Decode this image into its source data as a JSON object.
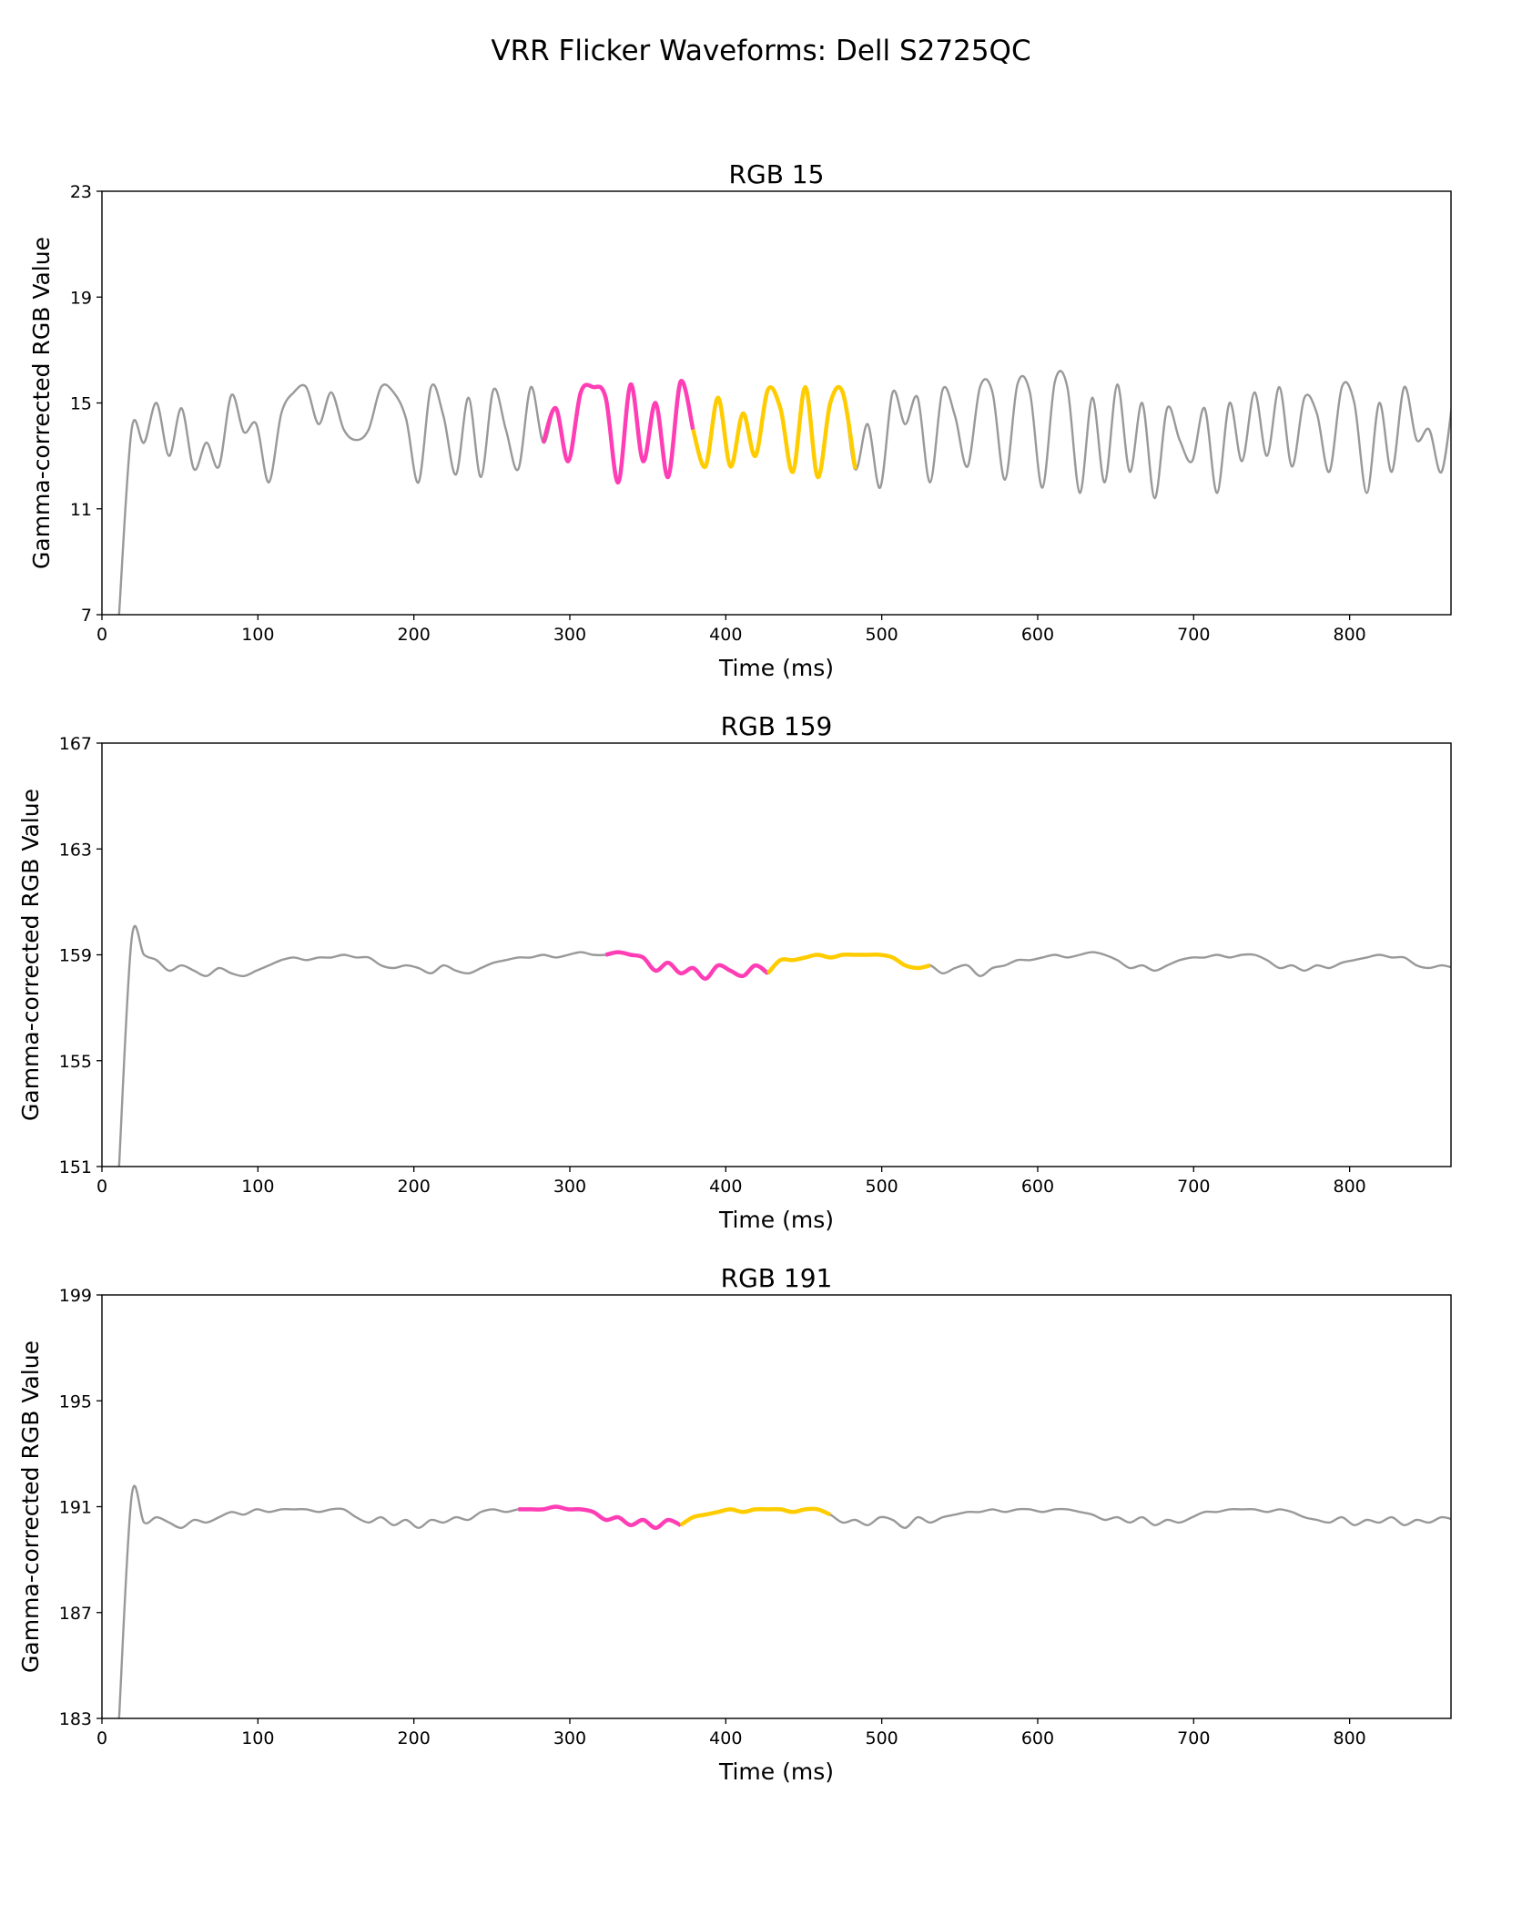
{
  "title": "VRR Flicker Waveforms: Dell S2725QC",
  "colors": {
    "base": "#999999",
    "highlight_a": "#ff3eb5",
    "highlight_b": "#ffcc00"
  },
  "chart_data": [
    {
      "type": "line",
      "title": "RGB 15",
      "xlabel": "Time (ms)",
      "ylabel": "Gamma-corrected RGB Value",
      "xlim": [
        0,
        865
      ],
      "ylim": [
        7,
        23
      ],
      "xticks": [
        0,
        100,
        200,
        300,
        400,
        500,
        600,
        700,
        800
      ],
      "yticks": [
        7,
        11,
        15,
        19,
        23
      ],
      "x_start": 11,
      "x_step": 8,
      "values": [
        7,
        14,
        13.5,
        15,
        13,
        14.8,
        12.5,
        13.5,
        12.6,
        15.3,
        13.9,
        14.2,
        12,
        14.6,
        15.4,
        15.6,
        14.2,
        15.4,
        14,
        13.6,
        14,
        15.6,
        15.4,
        14.4,
        12,
        15.6,
        14.5,
        12.3,
        15.2,
        12.2,
        15.5,
        14,
        12.5,
        15.6,
        13.5,
        14.8,
        12.8,
        15.4,
        15.6,
        15.2,
        12,
        15.7,
        12.8,
        15,
        12.2,
        15.8,
        14,
        12.6,
        15.2,
        12.6,
        14.6,
        13,
        15.5,
        14.8,
        12.4,
        15.6,
        12.2,
        15,
        15.4,
        12.5,
        14.2,
        11.8,
        15.4,
        14.2,
        15.2,
        12,
        15.5,
        14.5,
        12.6,
        15.6,
        15.4,
        12.1,
        15.7,
        15.4,
        11.8,
        15.8,
        15.6,
        11.6,
        15.2,
        12,
        15.7,
        12.4,
        15,
        11.4,
        14.8,
        13.6,
        12.8,
        14.8,
        11.6,
        15,
        12.8,
        15.4,
        13,
        15.6,
        12.6,
        15.2,
        14.6,
        12.4,
        15.6,
        15,
        11.6,
        15,
        12.4,
        15.6,
        13.6,
        14,
        12.4,
        15.6
      ],
      "highlights": [
        {
          "color": "highlight_a",
          "range": [
            281,
            382
          ]
        },
        {
          "color": "highlight_b",
          "range": [
            382,
            480
          ]
        }
      ]
    },
    {
      "type": "line",
      "title": "RGB 159",
      "xlabel": "Time (ms)",
      "ylabel": "Gamma-corrected RGB Value",
      "xlim": [
        0,
        865
      ],
      "ylim": [
        151,
        167
      ],
      "xticks": [
        0,
        100,
        200,
        300,
        400,
        500,
        600,
        700,
        800
      ],
      "yticks": [
        151,
        155,
        159,
        163,
        167
      ],
      "x_start": 11,
      "x_step": 8,
      "values": [
        151,
        159.6,
        159,
        158.8,
        158.4,
        158.6,
        158.4,
        158.2,
        158.5,
        158.3,
        158.2,
        158.4,
        158.6,
        158.8,
        158.9,
        158.8,
        158.9,
        158.9,
        159,
        158.9,
        158.9,
        158.6,
        158.5,
        158.6,
        158.5,
        158.3,
        158.6,
        158.4,
        158.3,
        158.5,
        158.7,
        158.8,
        158.9,
        158.9,
        159,
        158.9,
        159,
        159.1,
        159,
        159,
        159.1,
        159,
        158.9,
        158.4,
        158.7,
        158.3,
        158.5,
        158.1,
        158.6,
        158.4,
        158.2,
        158.6,
        158.3,
        158.8,
        158.8,
        158.9,
        159,
        158.9,
        159,
        159,
        159,
        159,
        158.9,
        158.6,
        158.5,
        158.6,
        158.3,
        158.5,
        158.6,
        158.2,
        158.5,
        158.6,
        158.8,
        158.8,
        158.9,
        159,
        158.9,
        159,
        159.1,
        159,
        158.8,
        158.5,
        158.6,
        158.4,
        158.6,
        158.8,
        158.9,
        158.9,
        159,
        158.9,
        159,
        159,
        158.8,
        158.5,
        158.6,
        158.4,
        158.6,
        158.5,
        158.7,
        158.8,
        158.9,
        159,
        158.9,
        158.9,
        158.6,
        158.5,
        158.6,
        158.5
      ],
      "highlights": [
        {
          "color": "highlight_a",
          "range": [
            325,
            425
          ]
        },
        {
          "color": "highlight_b",
          "range": [
            425,
            527
          ]
        }
      ]
    },
    {
      "type": "line",
      "title": "RGB 191",
      "xlabel": "Time (ms)",
      "ylabel": "Gamma-corrected RGB Value",
      "xlim": [
        0,
        865
      ],
      "ylim": [
        183,
        199
      ],
      "xticks": [
        0,
        100,
        200,
        300,
        400,
        500,
        600,
        700,
        800
      ],
      "yticks": [
        183,
        187,
        191,
        195,
        199
      ],
      "x_start": 11,
      "x_step": 8,
      "values": [
        183,
        191.4,
        190.4,
        190.6,
        190.4,
        190.2,
        190.5,
        190.4,
        190.6,
        190.8,
        190.7,
        190.9,
        190.8,
        190.9,
        190.9,
        190.9,
        190.8,
        190.9,
        190.9,
        190.6,
        190.4,
        190.6,
        190.3,
        190.5,
        190.2,
        190.5,
        190.4,
        190.6,
        190.5,
        190.8,
        190.9,
        190.8,
        190.9,
        190.9,
        190.9,
        191,
        190.9,
        190.9,
        190.8,
        190.5,
        190.6,
        190.3,
        190.5,
        190.2,
        190.5,
        190.3,
        190.6,
        190.7,
        190.8,
        190.9,
        190.8,
        190.9,
        190.9,
        190.9,
        190.8,
        190.9,
        190.9,
        190.7,
        190.4,
        190.5,
        190.3,
        190.6,
        190.5,
        190.2,
        190.6,
        190.4,
        190.6,
        190.7,
        190.8,
        190.8,
        190.9,
        190.8,
        190.9,
        190.9,
        190.8,
        190.9,
        190.9,
        190.8,
        190.7,
        190.5,
        190.6,
        190.4,
        190.6,
        190.3,
        190.5,
        190.4,
        190.6,
        190.8,
        190.8,
        190.9,
        190.9,
        190.9,
        190.8,
        190.9,
        190.8,
        190.6,
        190.5,
        190.4,
        190.6,
        190.3,
        190.5,
        190.4,
        190.6,
        190.3,
        190.5,
        190.4,
        190.6,
        190.5
      ],
      "highlights": [
        {
          "color": "highlight_a",
          "range": [
            268,
            368
          ]
        },
        {
          "color": "highlight_b",
          "range": [
            368,
            470
          ]
        }
      ]
    }
  ]
}
